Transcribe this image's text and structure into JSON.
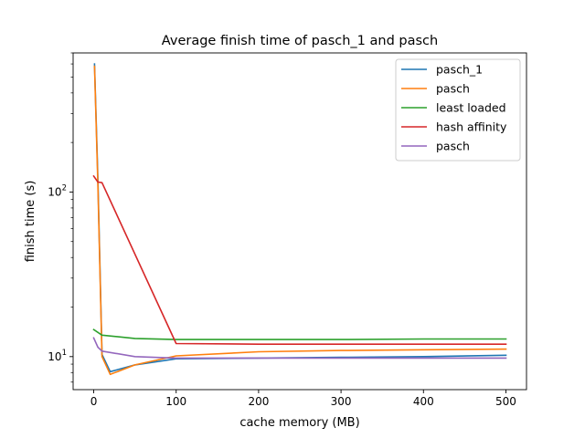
{
  "chart_data": {
    "type": "line",
    "title": "Average finish time of pasch_1 and pasch",
    "xlabel": "cache memory (MB)",
    "ylabel": "finish time (s)",
    "xlim": [
      -25,
      525
    ],
    "ylim": [
      6.3,
      700
    ],
    "yscale": "log",
    "x_ticks": [
      0,
      100,
      200,
      300,
      400,
      500
    ],
    "y_ticks": [
      {
        "value": 10,
        "label": "10",
        "sup": "1"
      },
      {
        "value": 100,
        "label": "10",
        "sup": "2"
      }
    ],
    "grid": false,
    "legend_position": "top-right",
    "series": [
      {
        "name": "pasch_1",
        "color": "#1f77b4",
        "points": [
          [
            1,
            600
          ],
          [
            5,
            120
          ],
          [
            10,
            10.3
          ],
          [
            20,
            8.1
          ],
          [
            50,
            8.9
          ],
          [
            100,
            9.7
          ],
          [
            200,
            9.8
          ],
          [
            300,
            9.9
          ],
          [
            400,
            10.0
          ],
          [
            500,
            10.2
          ]
        ]
      },
      {
        "name": "pasch",
        "color": "#ff7f0e",
        "points": [
          [
            1,
            580
          ],
          [
            5,
            110
          ],
          [
            10,
            10.0
          ],
          [
            20,
            7.8
          ],
          [
            50,
            8.9
          ],
          [
            100,
            10.1
          ],
          [
            200,
            10.7
          ],
          [
            300,
            10.9
          ],
          [
            400,
            11.0
          ],
          [
            500,
            11.1
          ]
        ]
      },
      {
        "name": "least loaded",
        "color": "#2ca02c",
        "points": [
          [
            0,
            14.6
          ],
          [
            10,
            13.5
          ],
          [
            50,
            12.9
          ],
          [
            100,
            12.7
          ],
          [
            200,
            12.7
          ],
          [
            300,
            12.7
          ],
          [
            400,
            12.8
          ],
          [
            500,
            12.8
          ]
        ]
      },
      {
        "name": "hash affinity",
        "color": "#d62728",
        "points": [
          [
            0,
            125
          ],
          [
            5,
            115
          ],
          [
            10,
            114
          ],
          [
            100,
            12.0
          ],
          [
            200,
            11.9
          ],
          [
            300,
            11.9
          ],
          [
            400,
            11.9
          ],
          [
            500,
            11.9
          ]
        ]
      },
      {
        "name": "pasch",
        "color": "#9467bd",
        "points": [
          [
            0,
            13.0
          ],
          [
            5,
            11.4
          ],
          [
            10,
            10.8
          ],
          [
            50,
            10.0
          ],
          [
            100,
            9.8
          ],
          [
            200,
            9.8
          ],
          [
            300,
            9.8
          ],
          [
            400,
            9.8
          ],
          [
            500,
            9.8
          ]
        ]
      }
    ]
  }
}
